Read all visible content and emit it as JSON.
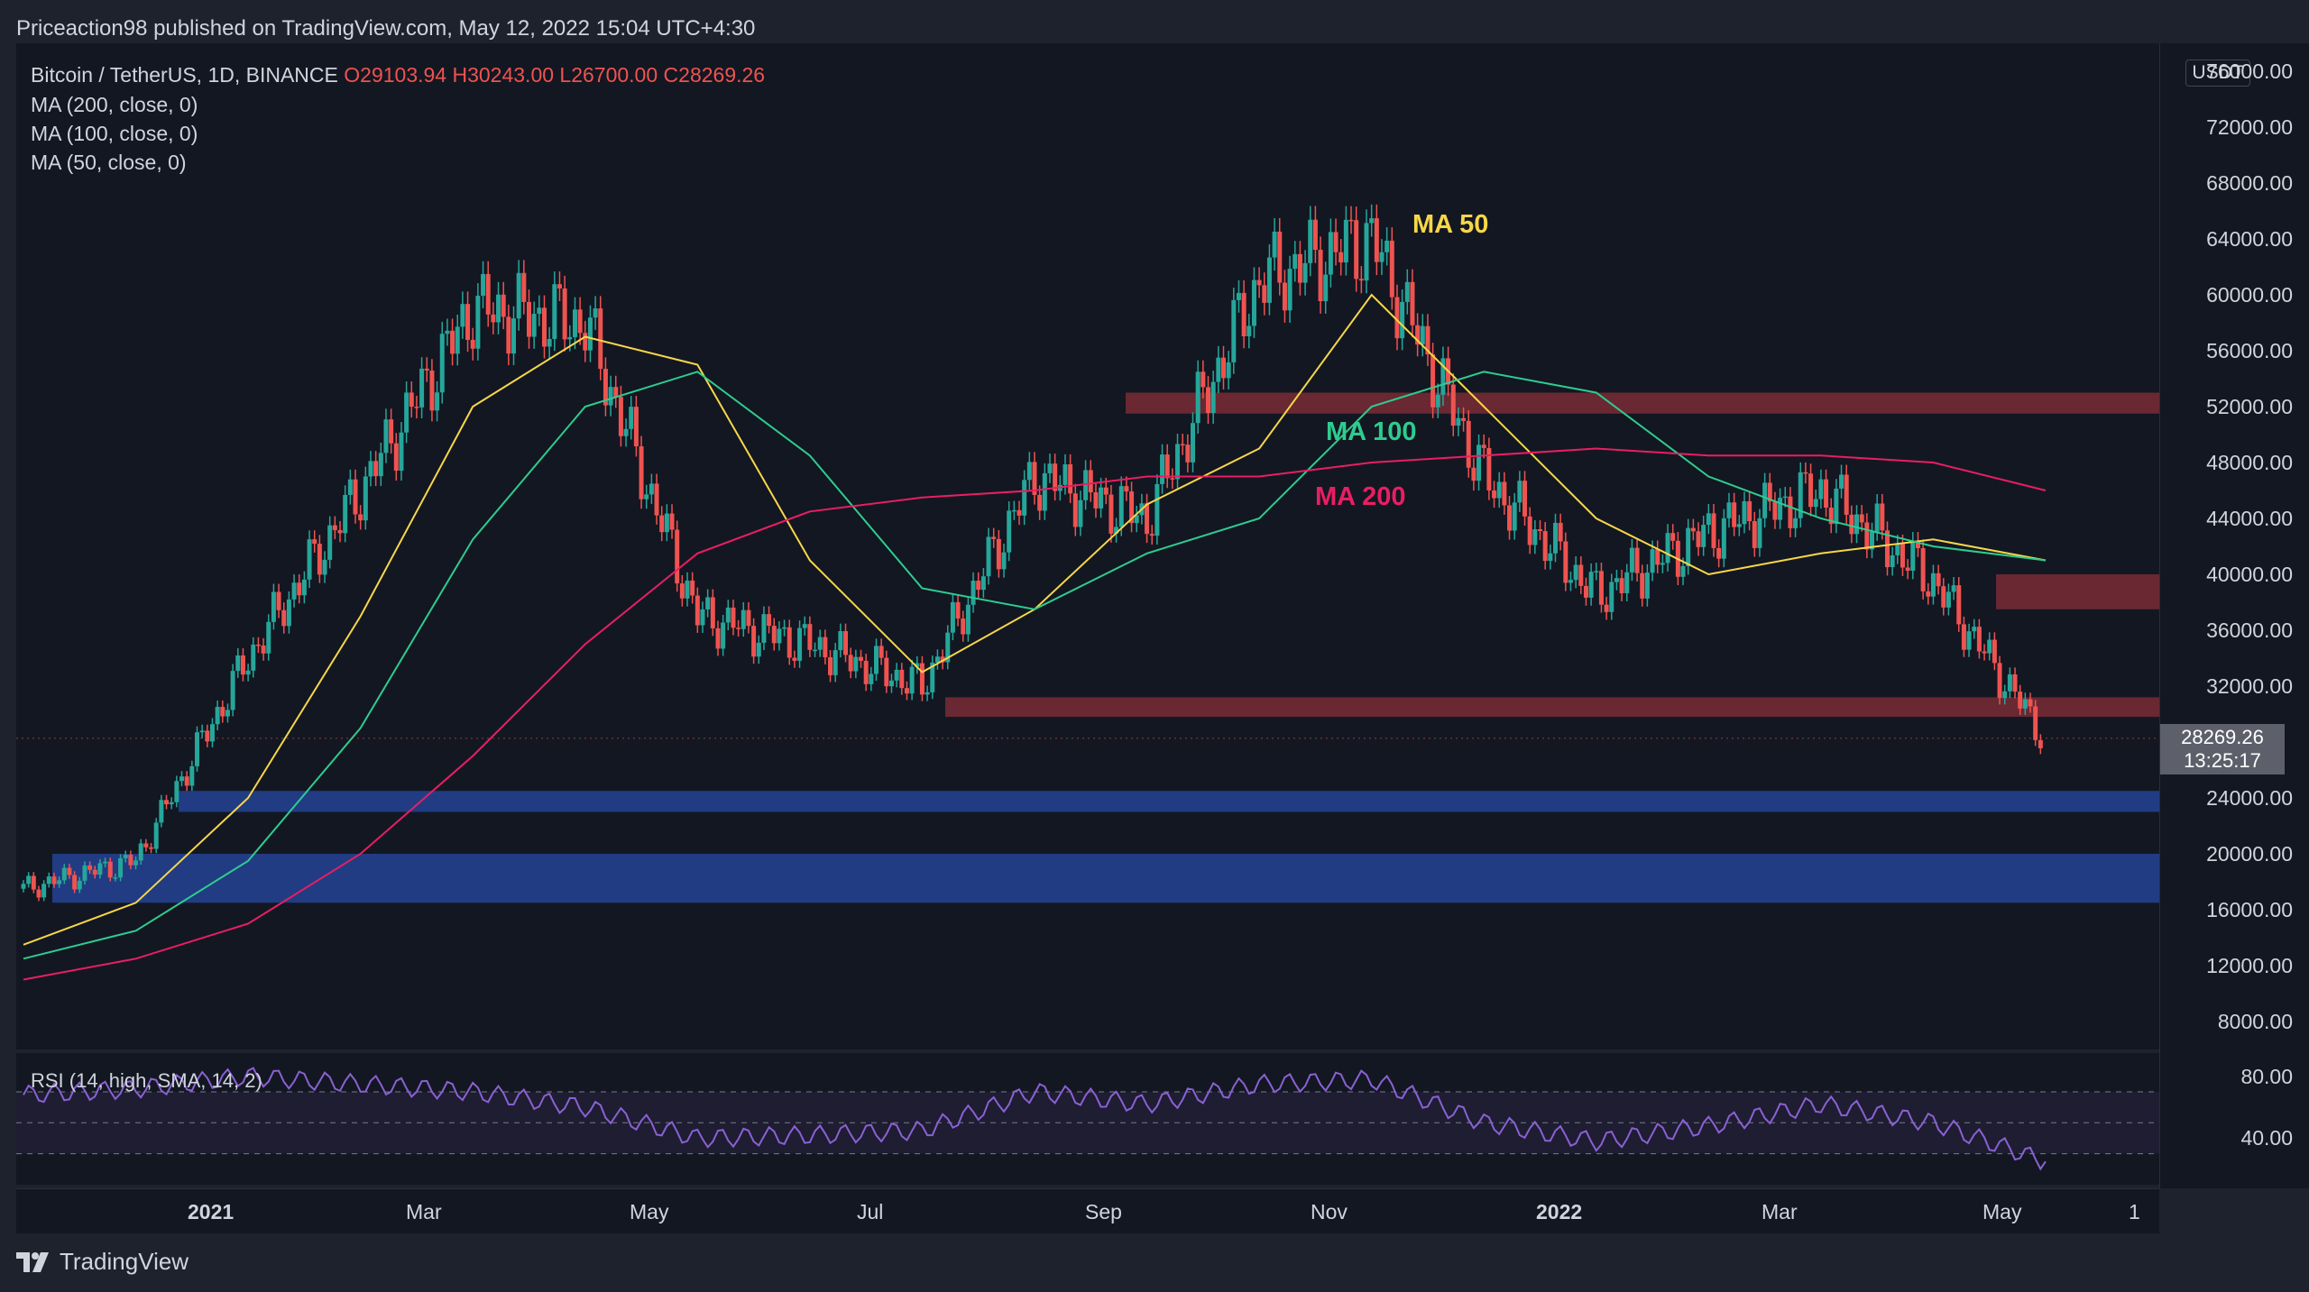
{
  "header": {
    "publisher": "Priceaction98 published on TradingView.com, May 12, 2022 15:04 UTC+4:30"
  },
  "legend": {
    "symbol": "Bitcoin / TetherUS, 1D, BINANCE",
    "open": "O29103.94",
    "high": "H30243.00",
    "low": "L26700.00",
    "close": "C28269.26",
    "ma200": "MA (200, close, 0)",
    "ma100": "MA (100, close, 0)",
    "ma50": "MA (50, close, 0)",
    "rsi": "RSI (14, high, SMA, 14, 2)"
  },
  "annotations": {
    "ma50": "MA 50",
    "ma100": "MA 100",
    "ma200": "MA 200"
  },
  "colors": {
    "ma50": "#f7d748",
    "ma100": "#2ecc8f",
    "ma200": "#e91e63",
    "up": "#26a69a",
    "down": "#ef5350",
    "resistance_zone": "#7a2b35",
    "support_zone": "#23408e",
    "rsi": "#8a61d4"
  },
  "price_axis": {
    "currency": "USDT",
    "ticks": [
      "76000.00",
      "72000.00",
      "68000.00",
      "64000.00",
      "60000.00",
      "56000.00",
      "52000.00",
      "48000.00",
      "44000.00",
      "40000.00",
      "36000.00",
      "32000.00",
      "24000.00",
      "20000.00",
      "16000.00",
      "12000.00",
      "8000.00"
    ],
    "last_price": "28269.26",
    "countdown": "13:25:17"
  },
  "rsi_axis": {
    "ticks": [
      "80.00",
      "40.00"
    ]
  },
  "time_axis": {
    "labels": [
      "2021",
      "Mar",
      "May",
      "Jul",
      "Sep",
      "Nov",
      "2022",
      "Mar",
      "May",
      "1"
    ]
  },
  "footer": {
    "brand": "TradingView"
  },
  "chart_data": {
    "type": "line",
    "title": "Bitcoin / TetherUS, 1D, BINANCE",
    "x_unit": "month",
    "ylim": [
      6000,
      78000
    ],
    "y_scale": "linear",
    "series": [
      {
        "name": "Bitcoin / TetherUS",
        "x": [
          "2020-11",
          "2020-12",
          "2021-01",
          "2021-02",
          "2021-03",
          "2021-04",
          "2021-05",
          "2021-06",
          "2021-07",
          "2021-08",
          "2021-09",
          "2021-10",
          "2021-11",
          "2021-12",
          "2022-01",
          "2022-02",
          "2022-03",
          "2022-04",
          "2022-05"
        ],
        "values": [
          17500,
          19500,
          34000,
          46000,
          59000,
          58000,
          37000,
          35000,
          32000,
          47000,
          44000,
          61000,
          64000,
          47000,
          38500,
          43000,
          46000,
          39500,
          28269.26
        ]
      },
      {
        "name": "MA (50, close, 0)",
        "values": [
          13500,
          16500,
          24000,
          37000,
          52000,
          57000,
          55000,
          41000,
          33000,
          37500,
          45000,
          49000,
          60000,
          52000,
          44000,
          40000,
          41500,
          42500,
          41000
        ]
      },
      {
        "name": "MA (100, close, 0)",
        "values": [
          12500,
          14500,
          19500,
          29000,
          42500,
          52000,
          54500,
          48500,
          39000,
          37500,
          41500,
          44000,
          52000,
          54500,
          53000,
          47000,
          44000,
          42000,
          41000
        ]
      },
      {
        "name": "MA (200, close, 0)",
        "values": [
          11000,
          12500,
          15000,
          20000,
          27000,
          35000,
          41500,
          44500,
          45500,
          46000,
          47000,
          47000,
          48000,
          48500,
          49000,
          48500,
          48500,
          48000,
          46000
        ]
      }
    ],
    "zones": [
      {
        "kind": "resistance",
        "low": 51500,
        "high": 53000
      },
      {
        "kind": "resistance",
        "low": 37500,
        "high": 40000
      },
      {
        "kind": "resistance",
        "low": 29800,
        "high": 31200
      },
      {
        "kind": "support",
        "low": 23000,
        "high": 24500
      },
      {
        "kind": "support",
        "low": 16500,
        "high": 20000
      }
    ],
    "rsi": {
      "name": "RSI (14, high, SMA, 14, 2)",
      "ylim": [
        10,
        95
      ],
      "bands": [
        30,
        50,
        70
      ],
      "values": [
        68,
        72,
        80,
        75,
        70,
        60,
        40,
        42,
        45,
        70,
        62,
        75,
        78,
        50,
        38,
        48,
        62,
        50,
        25
      ]
    }
  }
}
